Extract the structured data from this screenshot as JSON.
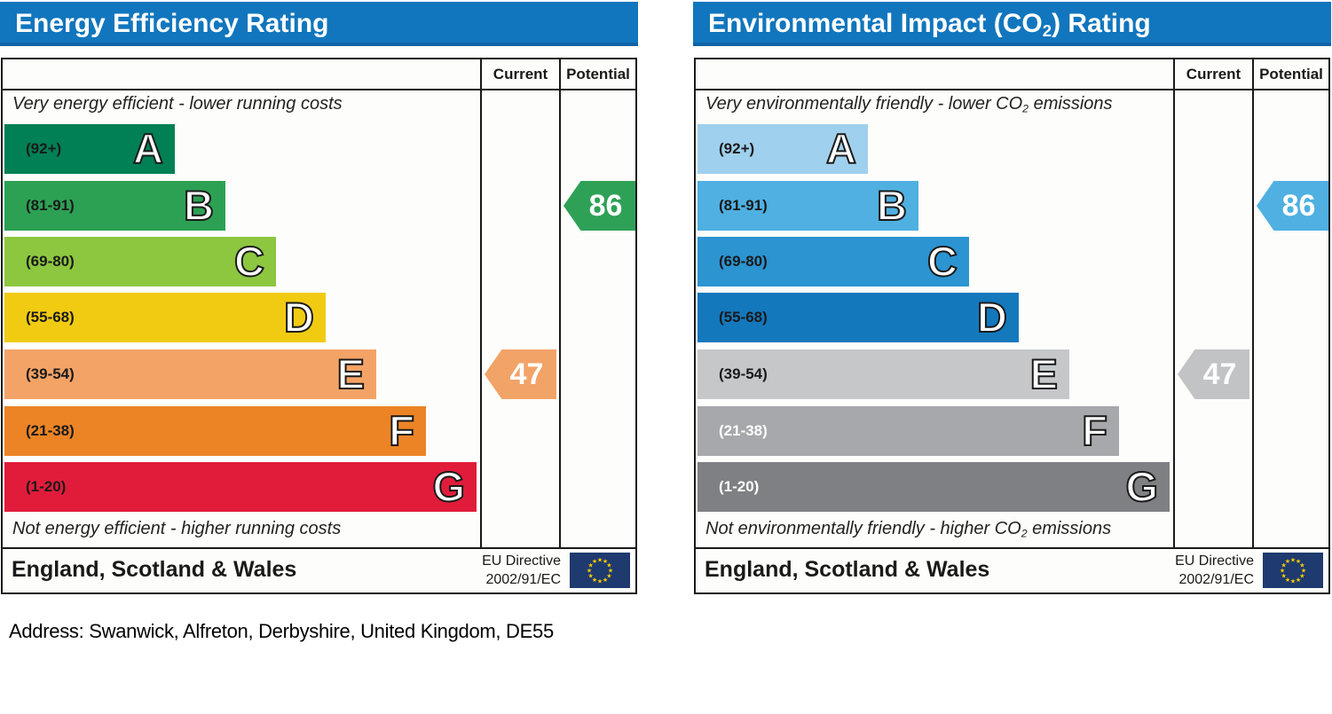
{
  "address": "Address: Swanwick, Alfreton, Derbyshire, United Kingdom, DE55",
  "charts": [
    {
      "id": "energy-efficiency",
      "title": {
        "prefix": "Energy Efficiency Rating",
        "sub": "",
        "suffix": ""
      },
      "columns": {
        "current": "Current",
        "potential": "Potential"
      },
      "top_note": {
        "prefix": "Very energy efficient - lower running costs",
        "sub": "",
        "suffix": ""
      },
      "bottom_note": {
        "prefix": "Not energy efficient - higher running costs",
        "sub": "",
        "suffix": ""
      },
      "bands": [
        {
          "letter": "A",
          "range": "(92+)",
          "color": "#008054"
        },
        {
          "letter": "B",
          "range": "(81-91)",
          "color": "#2ca153"
        },
        {
          "letter": "C",
          "range": "(69-80)",
          "color": "#8dc63f"
        },
        {
          "letter": "D",
          "range": "(55-68)",
          "color": "#f1cb12"
        },
        {
          "letter": "E",
          "range": "(39-54)",
          "color": "#f4a366"
        },
        {
          "letter": "F",
          "range": "(21-38)",
          "color": "#ec8426"
        },
        {
          "letter": "G",
          "range": "(1-20)",
          "color": "#e11c3a"
        }
      ],
      "current": {
        "value": "47",
        "band": "E",
        "color": "#f2a368"
      },
      "potential": {
        "value": "86",
        "band": "B",
        "color": "#2ea157"
      },
      "footer": {
        "region": "England, Scotland & Wales",
        "directive_line1": "EU Directive",
        "directive_line2": "2002/91/EC"
      }
    },
    {
      "id": "environmental-impact-co2",
      "title": {
        "prefix": "Environmental Impact (CO",
        "sub": "2",
        "suffix": ") Rating"
      },
      "columns": {
        "current": "Current",
        "potential": "Potential"
      },
      "top_note": {
        "prefix": "Very environmentally friendly - lower CO",
        "sub": "2",
        "suffix": " emissions"
      },
      "bottom_note": {
        "prefix": "Not environmentally friendly - higher CO",
        "sub": "2",
        "suffix": " emissions"
      },
      "bands": [
        {
          "letter": "A",
          "range": "(92+)",
          "color": "#9fd0ed"
        },
        {
          "letter": "B",
          "range": "(81-91)",
          "color": "#4fb0e1"
        },
        {
          "letter": "C",
          "range": "(69-80)",
          "color": "#2b94d1"
        },
        {
          "letter": "D",
          "range": "(55-68)",
          "color": "#1478bd"
        },
        {
          "letter": "E",
          "range": "(39-54)",
          "color": "#c6c7c9"
        },
        {
          "letter": "F",
          "range": "(21-38)",
          "color": "#a7a8ab"
        },
        {
          "letter": "G",
          "range": "(1-20)",
          "color": "#7f8083"
        }
      ],
      "current": {
        "value": "47",
        "band": "E",
        "color": "#c2c3c5"
      },
      "potential": {
        "value": "86",
        "band": "B",
        "color": "#4fb0e1"
      },
      "footer": {
        "region": "England, Scotland & Wales",
        "directive_line1": "EU Directive",
        "directive_line2": "2002/91/EC"
      }
    }
  ],
  "chart_data": [
    {
      "type": "bar",
      "title": "Energy Efficiency Rating",
      "categories": [
        "A (92+)",
        "B (81-91)",
        "C (69-80)",
        "D (55-68)",
        "E (39-54)",
        "F (21-38)",
        "G (1-20)"
      ],
      "band_colors": [
        "#008054",
        "#2ca153",
        "#8dc63f",
        "#f1cb12",
        "#f4a366",
        "#ec8426",
        "#e11c3a"
      ],
      "current": {
        "value": 47,
        "band": "E"
      },
      "potential": {
        "value": 86,
        "band": "B"
      },
      "scale": [
        1,
        100
      ],
      "top_note": "Very energy efficient - lower running costs",
      "bottom_note": "Not energy efficient - higher running costs",
      "region": "England, Scotland & Wales",
      "directive": "EU Directive 2002/91/EC"
    },
    {
      "type": "bar",
      "title": "Environmental Impact (CO2) Rating",
      "categories": [
        "A (92+)",
        "B (81-91)",
        "C (69-80)",
        "D (55-68)",
        "E (39-54)",
        "F (21-38)",
        "G (1-20)"
      ],
      "band_colors": [
        "#9fd0ed",
        "#4fb0e1",
        "#2b94d1",
        "#1478bd",
        "#c6c7c9",
        "#a7a8ab",
        "#7f8083"
      ],
      "current": {
        "value": 47,
        "band": "E"
      },
      "potential": {
        "value": 86,
        "band": "B"
      },
      "scale": [
        1,
        100
      ],
      "top_note": "Very environmentally friendly - lower CO2 emissions",
      "bottom_note": "Not environmentally friendly - higher CO2 emissions",
      "region": "England, Scotland & Wales",
      "directive": "EU Directive 2002/91/EC"
    }
  ]
}
